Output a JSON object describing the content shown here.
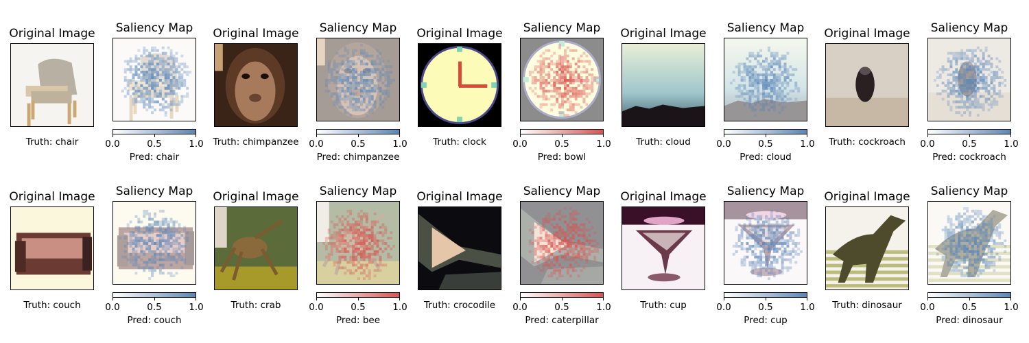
{
  "chart_data": {
    "type": "image-grid",
    "panel_titles": {
      "original": "Original Image",
      "saliency": "Saliency Map"
    },
    "colorbar": {
      "ticks": [
        "0.0",
        "0.5",
        "1.0"
      ],
      "range": [
        0,
        1
      ]
    },
    "colormaps": {
      "blue": "#5a86b8",
      "red": "#d9534f"
    },
    "rows": [
      [
        {
          "truth": "Truth: chair",
          "pred": "Pred: chair",
          "cmap": "blue",
          "scene": "chair"
        },
        {
          "truth": "Truth: chimpanzee",
          "pred": "Pred: chimpanzee",
          "cmap": "blue",
          "scene": "chimp"
        },
        {
          "truth": "Truth: clock",
          "pred": "Pred: bowl",
          "cmap": "red",
          "scene": "clock"
        },
        {
          "truth": "Truth: cloud",
          "pred": "Pred: cloud",
          "cmap": "blue",
          "scene": "cloud"
        },
        {
          "truth": "Truth: cockroach",
          "pred": "Pred: cockroach",
          "cmap": "blue",
          "scene": "roach"
        }
      ],
      [
        {
          "truth": "Truth: couch",
          "pred": "Pred: couch",
          "cmap": "blue",
          "scene": "couch"
        },
        {
          "truth": "Truth: crab",
          "pred": "Pred: bee",
          "cmap": "red",
          "scene": "crab"
        },
        {
          "truth": "Truth: crocodile",
          "pred": "Pred: caterpillar",
          "cmap": "red",
          "scene": "croc"
        },
        {
          "truth": "Truth: cup",
          "pred": "Pred: cup",
          "cmap": "blue",
          "scene": "cup"
        },
        {
          "truth": "Truth: dinosaur",
          "pred": "Pred: dinosaur",
          "cmap": "blue",
          "scene": "dino"
        }
      ]
    ]
  }
}
